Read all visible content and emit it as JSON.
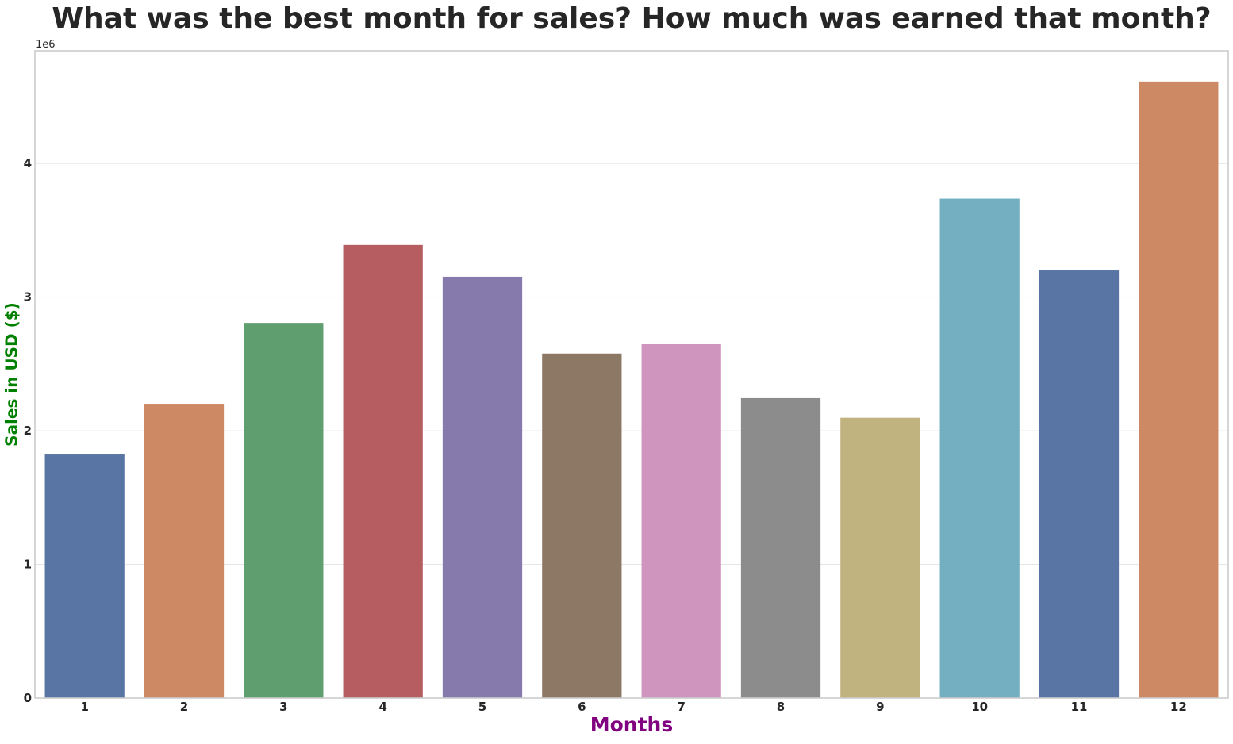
{
  "chart_data": {
    "type": "bar",
    "title": "What was the best month for sales? How much was earned that month?",
    "xlabel": "Months",
    "ylabel": "Sales in USD ($)",
    "categories": [
      "1",
      "2",
      "3",
      "4",
      "5",
      "6",
      "7",
      "8",
      "9",
      "10",
      "11",
      "12"
    ],
    "values": [
      1822257,
      2202022,
      2807100,
      3390670,
      3152607,
      2577802,
      2647776,
      2244468,
      2097560,
      3736727,
      3199603,
      4613443
    ],
    "y_scale_label": "1e6",
    "y_ticks": [
      0,
      1000000,
      2000000,
      3000000,
      4000000
    ],
    "y_tick_labels": [
      "0",
      "1",
      "2",
      "3",
      "4"
    ],
    "ylim": [
      0,
      4844115
    ],
    "grid": true,
    "legend": "none",
    "colors": {
      "bars": [
        "#5975a4",
        "#cc8963",
        "#5f9e6e",
        "#b55d60",
        "#857aab",
        "#8d7866",
        "#d095bf",
        "#8c8c8c",
        "#c1b37f",
        "#73aec1",
        "#5975a4",
        "#cc8963"
      ],
      "xlabel": "#800080",
      "ylabel": "#008000",
      "grid": "#e5e5e5",
      "frame": "#cccccc",
      "text": "#262626"
    }
  }
}
